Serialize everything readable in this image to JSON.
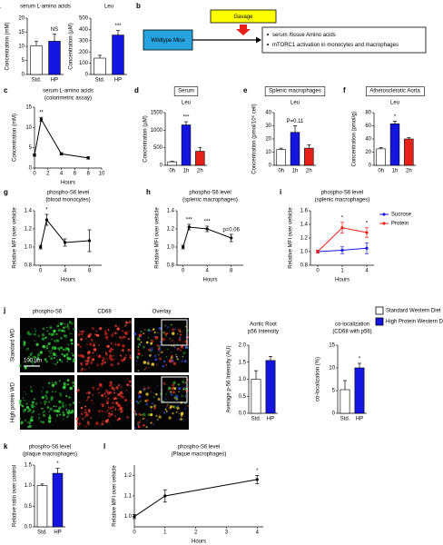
{
  "chart_data": [
    {
      "type": "bar",
      "panel_label": "a",
      "title": "serum L-amino acids",
      "y_label": "Concentration (mM)",
      "categories": [
        "Std.",
        "HP"
      ],
      "values": [
        10.2,
        11.8
      ],
      "errors": [
        1.5,
        2.5
      ],
      "colors": [
        "#ffffff",
        "#1515e0"
      ],
      "ylim": [
        0,
        20
      ],
      "yticks": [
        0,
        5,
        10,
        15,
        20
      ],
      "annotations": [
        null,
        "NS"
      ]
    },
    {
      "type": "bar",
      "title": "Leu",
      "y_label": "Concentration (µM)",
      "categories": [
        "Std.",
        "HP"
      ],
      "values": [
        145,
        350
      ],
      "errors": [
        25,
        40
      ],
      "colors": [
        "#ffffff",
        "#1515e0"
      ],
      "ylim": [
        0,
        500
      ],
      "yticks": [
        0,
        100,
        200,
        300,
        400,
        500
      ],
      "annotations": [
        null,
        "***"
      ]
    },
    {
      "type": "line",
      "panel_label": "c",
      "title": "serum L-amino acids",
      "subtitle": "(colorimetric assay)",
      "y_label": "Concentration (mM)",
      "x_label": "Hours",
      "x": [
        0,
        1,
        4,
        8
      ],
      "series": [
        {
          "color": "#000000",
          "values": [
            3.2,
            12,
            3.5,
            2.5
          ],
          "errors": [
            0.3,
            0.5,
            0.3,
            0.3
          ]
        }
      ],
      "xlim": [
        0,
        10
      ],
      "xticks": [
        0,
        2,
        4,
        6,
        8,
        10
      ],
      "ylim": [
        0,
        15
      ],
      "yticks": [
        0,
        5,
        10,
        15
      ],
      "annotations": [
        null,
        "**",
        null,
        null
      ]
    },
    {
      "type": "bar",
      "panel_label": "d",
      "title": "Serum",
      "title_box": true,
      "subtitle": "Leu",
      "y_label": "Concentration (µM)",
      "categories": [
        "0h",
        "1h",
        "2h"
      ],
      "values": [
        100,
        1150,
        400
      ],
      "errors": [
        15,
        90,
        110
      ],
      "colors": [
        "#ffffff",
        "#1515e0",
        "#e8201a"
      ],
      "ylim": [
        0,
        1500
      ],
      "yticks": [
        0,
        500,
        1000,
        1500
      ],
      "annotations": [
        null,
        "***",
        null
      ]
    },
    {
      "type": "bar",
      "panel_label": "e",
      "title": "Splenic macrophages",
      "title_box": true,
      "subtitle": "Leu",
      "y_label": "Concentration (pmol/10⁶ cell)",
      "categories": [
        "0h",
        "1h",
        "2h"
      ],
      "values": [
        12,
        25,
        13
      ],
      "errors": [
        1,
        5,
        2.5
      ],
      "colors": [
        "#ffffff",
        "#1515e0",
        "#e8201a"
      ],
      "ylim": [
        0,
        40
      ],
      "yticks": [
        0,
        10,
        20,
        30,
        40
      ],
      "annotations": [
        null,
        "P=0.11",
        null
      ]
    },
    {
      "type": "bar",
      "panel_label": "f",
      "title": "Atherosclerotic Aorta",
      "title_box": true,
      "subtitle": "Leu",
      "y_label": "Concentration (pmol/g)",
      "categories": [
        "0h",
        "1h",
        "2h"
      ],
      "values": [
        25,
        63,
        40
      ],
      "errors": [
        2,
        4,
        2
      ],
      "colors": [
        "#ffffff",
        "#1515e0",
        "#e8201a"
      ],
      "ylim": [
        0,
        80
      ],
      "yticks": [
        0,
        20,
        40,
        60,
        80
      ],
      "annotations": [
        null,
        "*",
        null
      ]
    },
    {
      "type": "line",
      "panel_label": "g",
      "title": "phospho-S6 level",
      "subtitle": "(blood monocytes)",
      "y_label": "Relative MFI over vehicle",
      "x_label": "Hours",
      "x": [
        0,
        1,
        4,
        8
      ],
      "series": [
        {
          "color": "#000000",
          "values": [
            1.0,
            1.3,
            1.05,
            1.07
          ],
          "errors": [
            0.02,
            0.06,
            0.04,
            0.12
          ]
        }
      ],
      "xlim": [
        -1,
        10
      ],
      "xticks": [
        0,
        4,
        8
      ],
      "ylim": [
        0.8,
        1.4
      ],
      "yticks": [
        0.8,
        {
          "value": 1,
          "label": "1.0"
        },
        1.2,
        1.4
      ],
      "annotations": [
        null,
        "*",
        null,
        null
      ]
    },
    {
      "type": "line",
      "panel_label": "h",
      "title": "phospho-S6 level",
      "subtitle": "(splenic macrophages)",
      "y_label": "Relative MFI over vehicle",
      "x_label": "Hours",
      "x": [
        0,
        1,
        4,
        8
      ],
      "series": [
        {
          "color": "#000000",
          "values": [
            1.0,
            1.22,
            1.2,
            1.1
          ],
          "errors": [
            0.02,
            0.03,
            0.03,
            0.04
          ]
        }
      ],
      "xlim": [
        -1,
        10
      ],
      "xticks": [
        0,
        4,
        8
      ],
      "ylim": [
        0.8,
        1.4
      ],
      "yticks": [
        0.8,
        {
          "value": 1,
          "label": "1.0"
        },
        1.2,
        1.4
      ],
      "annotations": [
        null,
        "***",
        "***",
        "p=0.06"
      ]
    },
    {
      "type": "line",
      "panel_label": "i",
      "title": "phospho-S6 level",
      "subtitle": "(splenic macrophages)",
      "y_label": "Relative MFI over vehicle",
      "x_label": "Hours",
      "categories": [
        "0",
        "1",
        "4"
      ],
      "series": [
        {
          "name": "Sucrose",
          "color": "#1515e0",
          "values": [
            1.0,
            1.02,
            1.05
          ],
          "errors": [
            0.02,
            0.05,
            0.08
          ]
        },
        {
          "name": "Protein",
          "color": "#e8201a",
          "values": [
            1.0,
            1.35,
            1.28
          ],
          "errors": [
            0.02,
            0.08,
            0.07
          ]
        }
      ],
      "ylim": [
        0.8,
        1.6
      ],
      "yticks": [
        0.8,
        {
          "value": 1,
          "label": "1.0"
        },
        1.2,
        1.4,
        1.6
      ],
      "annotations": [
        null,
        "*",
        "*"
      ],
      "legend": "right"
    },
    {
      "type": "bar",
      "title": "Aortic Root",
      "subtitle": "p56 Intensity",
      "y_label": "Average p-56 Intensity (AU)",
      "categories": [
        "Std.",
        "HP"
      ],
      "values": [
        1.0,
        1.55
      ],
      "errors": [
        0.25,
        0.12
      ],
      "colors": [
        "#ffffff",
        "#1515e0"
      ],
      "ylim": [
        0,
        2
      ],
      "yticks": [
        {
          "value": 0,
          "label": "0.0"
        },
        0.5,
        {
          "value": 1,
          "label": "1.0"
        },
        1.5,
        {
          "value": 2,
          "label": "2.0"
        }
      ],
      "annotations": [
        null,
        null
      ]
    },
    {
      "type": "bar",
      "title": "co-localization",
      "subtitle": "(CD68 with p56)",
      "y_label": "co-localization (%)",
      "categories": [
        "Std.",
        "HP"
      ],
      "values": [
        5.2,
        10
      ],
      "errors": [
        2,
        1
      ],
      "colors": [
        "#ffffff",
        "#1515e0"
      ],
      "ylim": [
        0,
        15
      ],
      "yticks": [
        0,
        5,
        10,
        15
      ],
      "annotations": [
        null,
        "*"
      ]
    },
    {
      "type": "bar",
      "panel_label": "k",
      "title": "phospho-S6 level",
      "subtitle": "(plaque macrophages)",
      "y_label": "Relative ratio over control",
      "categories": [
        "Std.",
        "HP"
      ],
      "values": [
        1.0,
        1.3
      ],
      "errors": [
        0.04,
        0.12
      ],
      "colors": [
        "#ffffff",
        "#1515e0"
      ],
      "ylim": [
        0,
        1.5
      ],
      "yticks": [
        {
          "value": 0,
          "label": "0.0"
        },
        0.5,
        {
          "value": 1,
          "label": "1.0"
        },
        1.5
      ],
      "annotations": [
        null,
        "*"
      ]
    },
    {
      "type": "line",
      "panel_label": "l",
      "title": "phospho-S6 level",
      "subtitle": "(Plaque macrophages)",
      "y_label": "Relative MFI over vehicle",
      "x_label": "Hours",
      "x": [
        0,
        1,
        4
      ],
      "series": [
        {
          "color": "#000000",
          "values": [
            1.0,
            1.1,
            1.18
          ],
          "errors": [
            0.01,
            0.03,
            0.02
          ]
        }
      ],
      "xlim": [
        0,
        4.2
      ],
      "xticks": [
        0,
        1,
        2,
        3,
        4
      ],
      "ylim": [
        0.95,
        1.25
      ],
      "yticks": [
        {
          "value": 1,
          "label": "1.0"
        },
        1.1,
        1.2
      ],
      "annotations": [
        null,
        null,
        "*"
      ]
    }
  ],
  "diagram": {
    "panel_label": "b",
    "trigger": "Gavage",
    "subject": "Wildtype Mice",
    "outcomes": [
      "serum /tissue Amino acids",
      "mTORC1 activation in monocytes and macrophages"
    ]
  },
  "micrographs": {
    "panel_label": "j",
    "channels": [
      "phospho-S6",
      "CD68",
      "Overlay"
    ],
    "rows": [
      "Standard WD",
      "High protein WD"
    ],
    "scale_bar": "100 µm"
  },
  "legend": {
    "entries": [
      {
        "name": "Standard Western Diet",
        "color": "#ffffff"
      },
      {
        "name": "High Protein Western Diet",
        "color": "#1515e0"
      }
    ]
  }
}
